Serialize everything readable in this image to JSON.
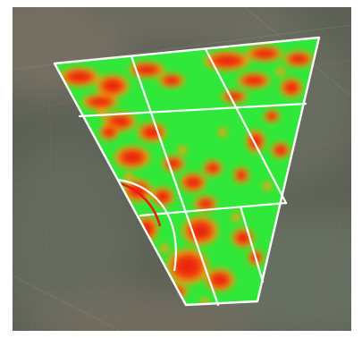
{
  "map": {
    "kind": "field-zone-heatmap",
    "basemap": "satellite-imagery",
    "colors": {
      "high": "#2fe83a",
      "mid": "#f3a20c",
      "low": "#ee2a12",
      "outline": "#ffffff",
      "ground": "#5d6156",
      "ground_light": "#7b7f73",
      "ground_warm": "#84776b"
    },
    "field": {
      "name": "field-polygon",
      "zone_grid": {
        "rows": 3,
        "cols": 3
      },
      "pivot_arc": true
    }
  }
}
